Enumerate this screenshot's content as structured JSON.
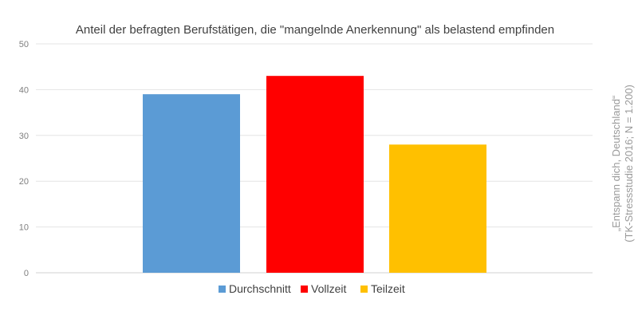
{
  "chart_data": {
    "type": "bar",
    "title": "Anteil der befragten Berufstätigen, die \"mangelnde Anerkennung\" als belastend empfinden",
    "xlabel": "",
    "ylabel": "",
    "ylim": [
      0,
      50
    ],
    "yticks": [
      0,
      10,
      20,
      30,
      40,
      50
    ],
    "grid": true,
    "legend_position": "bottom",
    "series": [
      {
        "name": "Durchschnitt",
        "values": [
          39
        ],
        "color": "#5b9bd5"
      },
      {
        "name": "Vollzeit",
        "values": [
          43
        ],
        "color": "#ff0000"
      },
      {
        "name": "Teilzeit",
        "values": [
          28
        ],
        "color": "#ffc000"
      }
    ],
    "source_lines": [
      "„Entspann dich, Deutschland“",
      "(TK-Stressstudie 2016; N = 1.200)"
    ]
  }
}
